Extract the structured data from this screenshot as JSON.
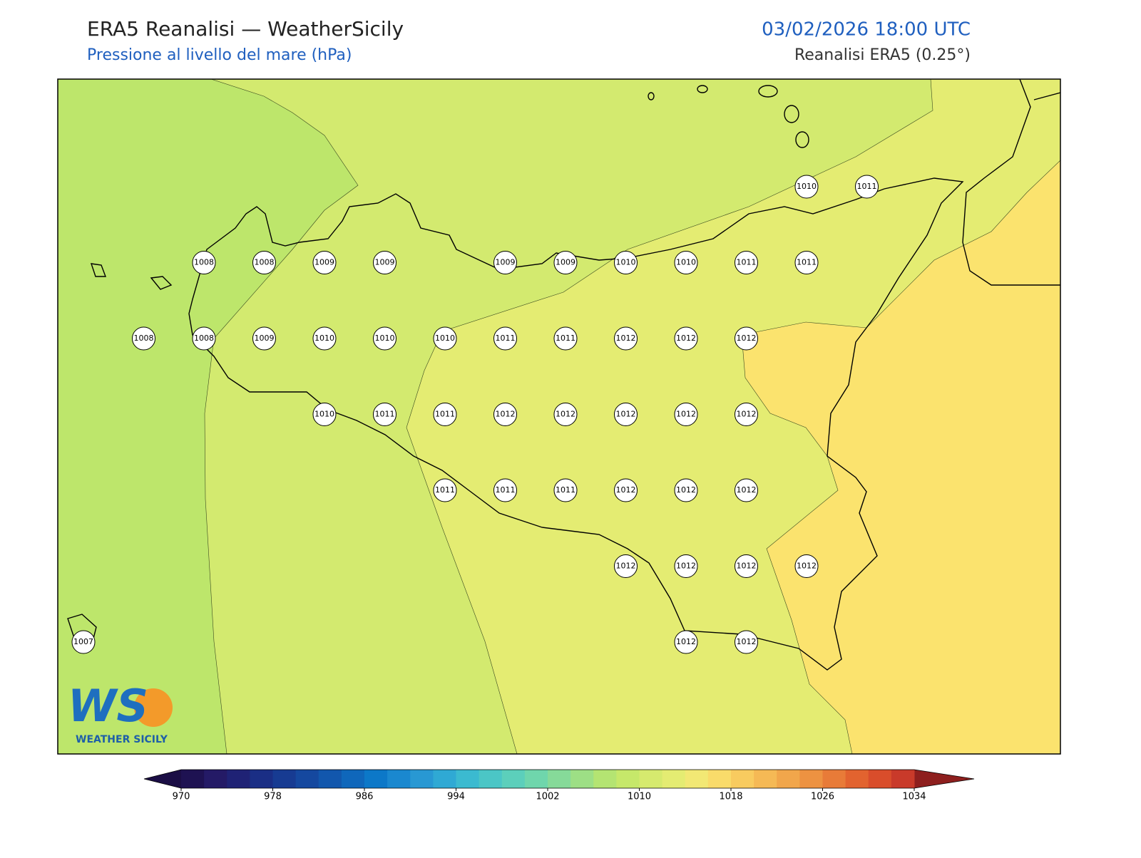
{
  "header": {
    "title": "ERA5 Reanalisi — WeatherSicily",
    "subtitle": "Pressione al livello del mare (hPa)",
    "datetime": "03/02/2026 18:00 UTC",
    "source": "Reanalisi ERA5 (0.25°)"
  },
  "stations": [
    [
      1010,
      1011
    ],
    [
      1008,
      1008,
      1009,
      1009,
      1009,
      1009,
      1010,
      1010,
      1011,
      1011
    ],
    [
      1008,
      1008,
      1009,
      1010,
      1010,
      1010,
      1011,
      1011,
      1012,
      1012,
      1012
    ],
    [
      1010,
      1011,
      1011,
      1012,
      1012,
      1012,
      1012,
      1012
    ],
    [
      1011,
      1011,
      1011,
      1012,
      1012,
      1012
    ],
    [
      1012,
      1012,
      1012,
      1012
    ],
    [
      1007,
      1012,
      1012
    ]
  ],
  "colorbar": {
    "min": 970,
    "max": 1034,
    "ticks": [
      970,
      978,
      986,
      994,
      1002,
      1010,
      1018,
      1026,
      1034
    ],
    "under_color": "#1b0e45",
    "over_color": "#8e1f1e",
    "colors": [
      "#1e1252",
      "#241a66",
      "#1f2275",
      "#1a2e85",
      "#173b92",
      "#15489f",
      "#1257ad",
      "#0f67bb",
      "#0c78c8",
      "#1a88cf",
      "#2898d3",
      "#2fa9d4",
      "#3bbad0",
      "#4bc6c6",
      "#5ccfbb",
      "#6fd6ac",
      "#86da99",
      "#9ddf85",
      "#b4e472",
      "#c6e86a",
      "#d6ea6e",
      "#e4ec72",
      "#f2e874",
      "#f9db6a",
      "#f8cb5f",
      "#f5b955",
      "#f1a64b",
      "#ed9241",
      "#e87b38",
      "#e2632f",
      "#d94d2b",
      "#c93a2a"
    ]
  },
  "logo": {
    "mark": "WS",
    "name": "WEATHER SICILY"
  }
}
